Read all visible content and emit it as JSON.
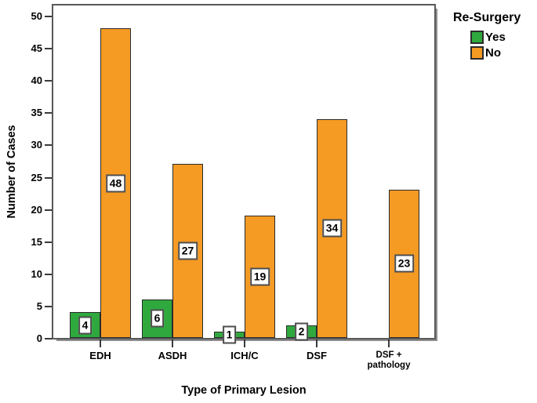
{
  "chart_data": {
    "type": "bar",
    "subtype": "clustered",
    "title": "",
    "xlabel": "Type of Primary Lesion",
    "ylabel": "Number of Cases",
    "categories": [
      "EDH",
      "ASDH",
      "ICH/C",
      "DSF",
      "DSF +\npathology"
    ],
    "series": [
      {
        "name": "Yes",
        "color": "#2FA93E",
        "values": [
          4,
          6,
          1,
          2,
          null
        ]
      },
      {
        "name": "No",
        "color": "#F59A23",
        "values": [
          48,
          27,
          19,
          34,
          23
        ]
      }
    ],
    "value_labels_boxed": true,
    "ylim": [
      0,
      50
    ],
    "y_ticks": [
      0,
      5,
      10,
      15,
      20,
      25,
      30,
      35,
      40,
      45,
      50
    ],
    "grid": false,
    "legend": {
      "title": "Re-Surgery",
      "position": "top-right-outside",
      "entries": [
        "Yes",
        "No"
      ]
    },
    "colors": {
      "yes_green": "#2FA93E",
      "no_orange": "#F59A23",
      "bar_border": "#2b2b2b",
      "frame_border": "#58595b",
      "text": "#000000",
      "background": "#ffffff"
    }
  }
}
